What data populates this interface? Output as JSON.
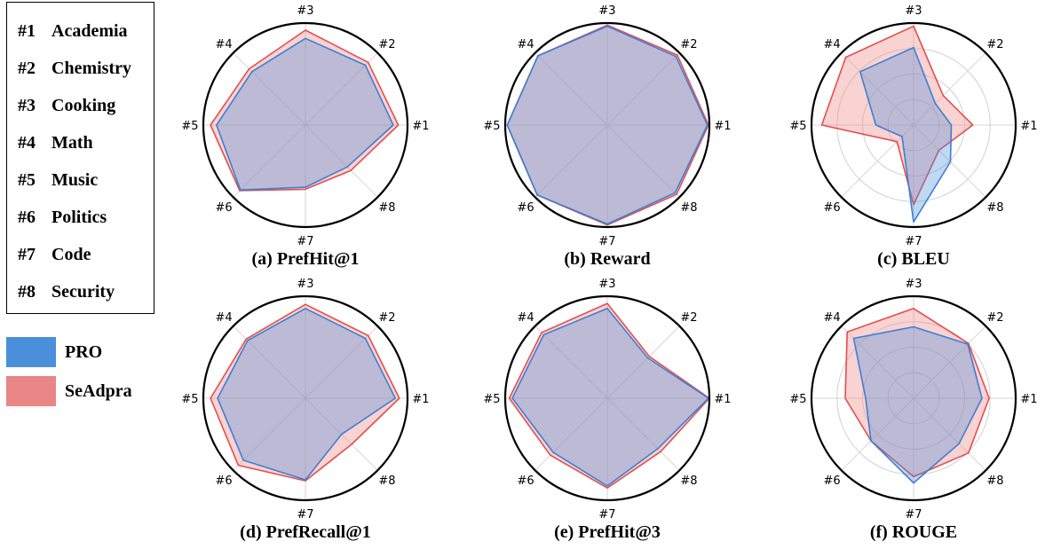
{
  "legend": {
    "categories": [
      {
        "num": "#1",
        "name": "Academia"
      },
      {
        "num": "#2",
        "name": "Chemistry"
      },
      {
        "num": "#3",
        "name": "Cooking"
      },
      {
        "num": "#4",
        "name": "Math"
      },
      {
        "num": "#5",
        "name": "Music"
      },
      {
        "num": "#6",
        "name": "Politics"
      },
      {
        "num": "#7",
        "name": "Code"
      },
      {
        "num": "#8",
        "name": "Security"
      }
    ],
    "series": [
      {
        "name": "PRO",
        "color": "#4a8fd9"
      },
      {
        "name": "SeAdpra",
        "color": "#e98686"
      }
    ]
  },
  "colors": {
    "pro_line": "#3d7fd4",
    "pro_fill": "#4a8fd9",
    "seadpra_line": "#e05050",
    "seadpra_fill": "#ef8e8e",
    "overlap_hint": "#c0bcd6"
  },
  "chart_data": [
    {
      "type": "radar",
      "title": "(a) PrefHit@1",
      "axes": [
        "#1",
        "#2",
        "#3",
        "#4",
        "#5",
        "#6",
        "#7",
        "#8"
      ],
      "grid": false,
      "series": [
        {
          "name": "PRO",
          "values": [
            0.86,
            0.83,
            0.85,
            0.74,
            0.87,
            0.9,
            0.61,
            0.58
          ]
        },
        {
          "name": "SeAdpra",
          "values": [
            0.91,
            0.87,
            0.93,
            0.78,
            0.93,
            0.91,
            0.63,
            0.63
          ]
        }
      ]
    },
    {
      "type": "radar",
      "title": "(b) Reward",
      "axes": [
        "#1",
        "#2",
        "#3",
        "#4",
        "#5",
        "#6",
        "#7",
        "#8"
      ],
      "grid": false,
      "series": [
        {
          "name": "PRO",
          "values": [
            0.98,
            0.95,
            0.97,
            0.96,
            0.98,
            0.97,
            0.97,
            0.94
          ]
        },
        {
          "name": "SeAdpra",
          "values": [
            0.99,
            0.97,
            0.98,
            0.96,
            0.98,
            0.97,
            0.98,
            0.96
          ]
        }
      ]
    },
    {
      "type": "radar",
      "title": "(c) BLEU",
      "axes": [
        "#1",
        "#2",
        "#3",
        "#4",
        "#5",
        "#6",
        "#7",
        "#8"
      ],
      "grid": true,
      "series": [
        {
          "name": "PRO",
          "values": [
            0.37,
            0.3,
            0.76,
            0.74,
            0.37,
            0.16,
            0.95,
            0.51
          ]
        },
        {
          "name": "SeAdpra",
          "values": [
            0.58,
            0.41,
            0.97,
            0.94,
            0.9,
            0.23,
            0.78,
            0.35
          ]
        }
      ]
    },
    {
      "type": "radar",
      "title": "(d) PrefRecall@1",
      "axes": [
        "#1",
        "#2",
        "#3",
        "#4",
        "#5",
        "#6",
        "#7",
        "#8"
      ],
      "grid": false,
      "series": [
        {
          "name": "PRO",
          "values": [
            0.88,
            0.83,
            0.88,
            0.8,
            0.86,
            0.86,
            0.8,
            0.5
          ]
        },
        {
          "name": "SeAdpra",
          "values": [
            0.92,
            0.87,
            0.92,
            0.82,
            0.93,
            0.93,
            0.81,
            0.64
          ]
        }
      ]
    },
    {
      "type": "radar",
      "title": "(e) PrefHit@3",
      "axes": [
        "#1",
        "#2",
        "#3",
        "#4",
        "#5",
        "#6",
        "#7",
        "#8"
      ],
      "grid": false,
      "series": [
        {
          "name": "PRO",
          "values": [
            0.99,
            0.56,
            0.88,
            0.88,
            0.93,
            0.75,
            0.86,
            0.7
          ]
        },
        {
          "name": "SeAdpra",
          "values": [
            1.0,
            0.58,
            0.93,
            0.91,
            0.96,
            0.79,
            0.88,
            0.74
          ]
        }
      ]
    },
    {
      "type": "radar",
      "title": "(f) ROUGE",
      "axes": [
        "#1",
        "#2",
        "#3",
        "#4",
        "#5",
        "#6",
        "#7",
        "#8"
      ],
      "grid": true,
      "series": [
        {
          "name": "PRO",
          "values": [
            0.67,
            0.75,
            0.7,
            0.83,
            0.47,
            0.59,
            0.83,
            0.63
          ]
        },
        {
          "name": "SeAdpra",
          "values": [
            0.74,
            0.76,
            0.88,
            0.92,
            0.67,
            0.59,
            0.77,
            0.76
          ]
        }
      ]
    }
  ]
}
